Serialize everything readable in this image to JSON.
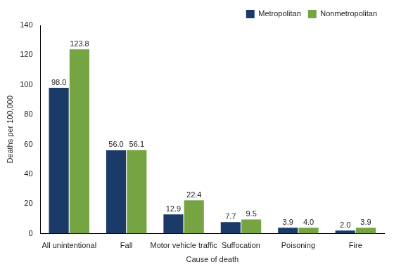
{
  "chart_data": {
    "type": "bar",
    "x_label": "Cause of death",
    "y_label": "Deaths per 100,000",
    "categories": [
      "All unintentional",
      "Fall",
      "Motor vehicle traffic",
      "Suffocation",
      "Poisoning",
      "Fire"
    ],
    "series": [
      {
        "name": "Metropolitan",
        "color": "#1b3a68",
        "values": [
          98.0,
          56.0,
          12.9,
          7.7,
          3.9,
          2.0
        ],
        "value_labels": [
          "98.0",
          "56.0",
          "12.9",
          "7.7",
          "3.9",
          "2.0"
        ]
      },
      {
        "name": "Nonmetropolitan",
        "color": "#76a443",
        "values": [
          123.8,
          56.1,
          22.4,
          9.5,
          4.0,
          3.9
        ],
        "value_labels": [
          "123.8",
          "56.1",
          "22.4",
          "9.5",
          "4.0",
          "3.9"
        ]
      }
    ],
    "ylim": [
      0,
      140
    ],
    "yticks": [
      0,
      20,
      40,
      60,
      80,
      100,
      120,
      140
    ],
    "grid": false,
    "legend": "top-right",
    "data_labels": true
  }
}
